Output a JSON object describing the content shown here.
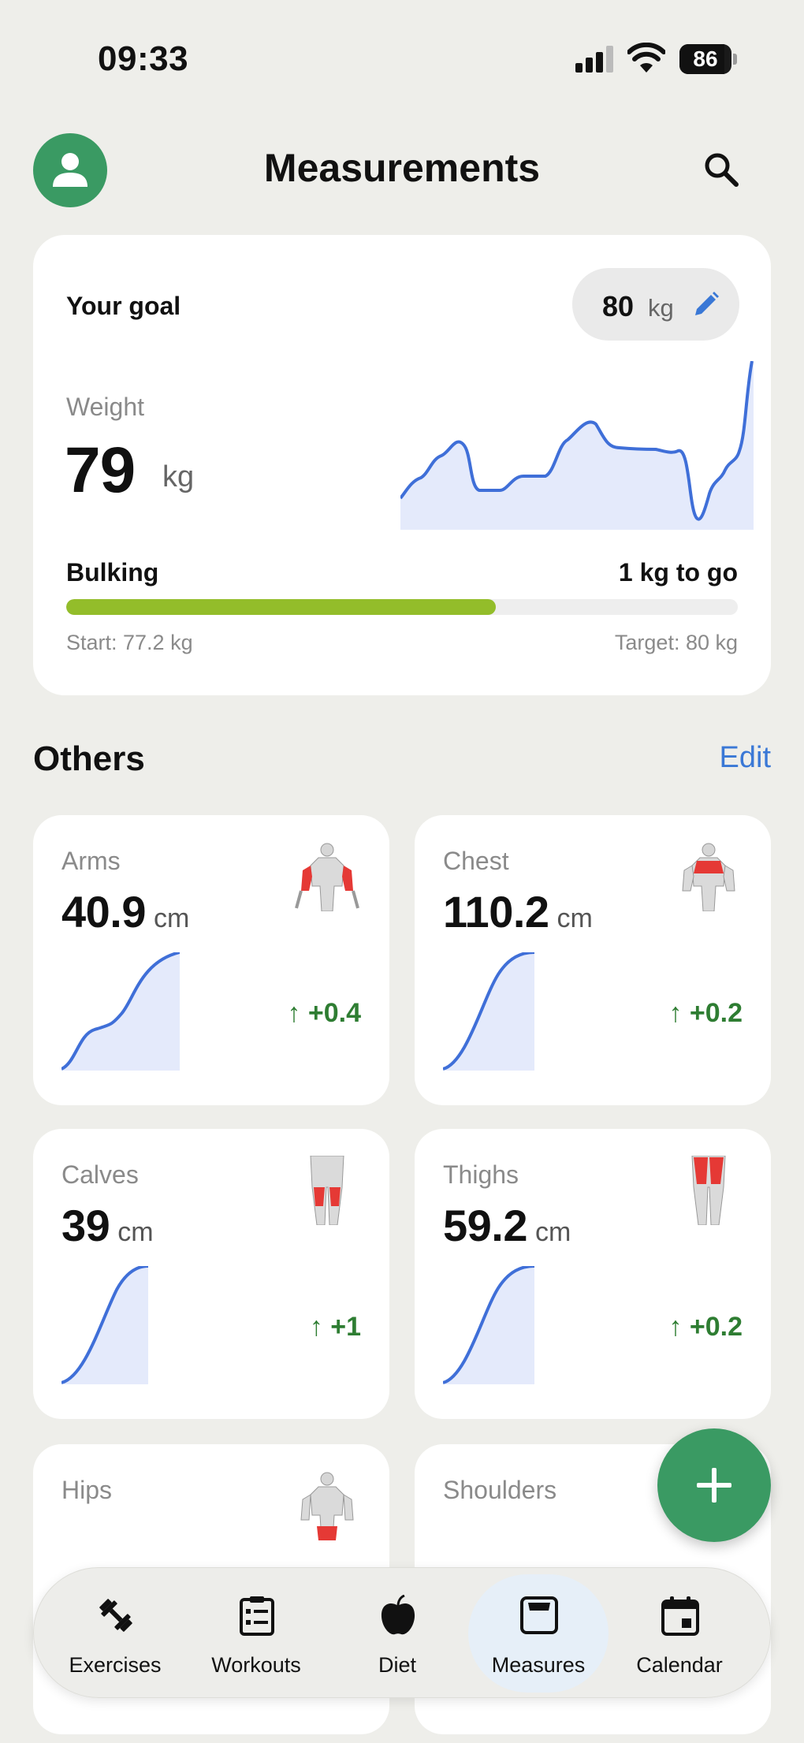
{
  "status_bar": {
    "time": "09:33",
    "battery": "86",
    "battery_level": 0.86
  },
  "header": {
    "title": "Measurements",
    "avatar_icon": "person-icon",
    "search_icon": "search-icon"
  },
  "goal_card": {
    "goal_label": "Your goal",
    "goal_value": "80",
    "goal_unit": "kg",
    "weight_label": "Weight",
    "weight_value": "79",
    "weight_unit": "kg",
    "phase": "Bulking",
    "to_go": "1 kg to go",
    "progress": 0.64,
    "start": "Start: 77.2 kg",
    "target": "Target: 80 kg",
    "accent": "#93BD2A"
  },
  "others": {
    "title": "Others",
    "edit_label": "Edit",
    "cards": [
      {
        "name": "Arms",
        "value": "40.9",
        "unit": "cm",
        "delta": "+0.4"
      },
      {
        "name": "Chest",
        "value": "110.2",
        "unit": "cm",
        "delta": "+0.2"
      },
      {
        "name": "Calves",
        "value": "39",
        "unit": "cm",
        "delta": "+1"
      },
      {
        "name": "Thighs",
        "value": "59.2",
        "unit": "cm",
        "delta": "+0.2"
      },
      {
        "name": "Hips"
      },
      {
        "name": "Shoulders"
      }
    ]
  },
  "tabs": [
    {
      "label": "Exercises",
      "icon": "dumbbell-icon"
    },
    {
      "label": "Workouts",
      "icon": "clipboard-icon"
    },
    {
      "label": "Diet",
      "icon": "apple-icon"
    },
    {
      "label": "Measures",
      "icon": "scale-icon",
      "active": true
    },
    {
      "label": "Calendar",
      "icon": "calendar-icon"
    }
  ],
  "colors": {
    "green": "#3A9A63",
    "link": "#3A78D6",
    "chart_line": "#3F6FD8",
    "delta": "#2E7D32"
  }
}
